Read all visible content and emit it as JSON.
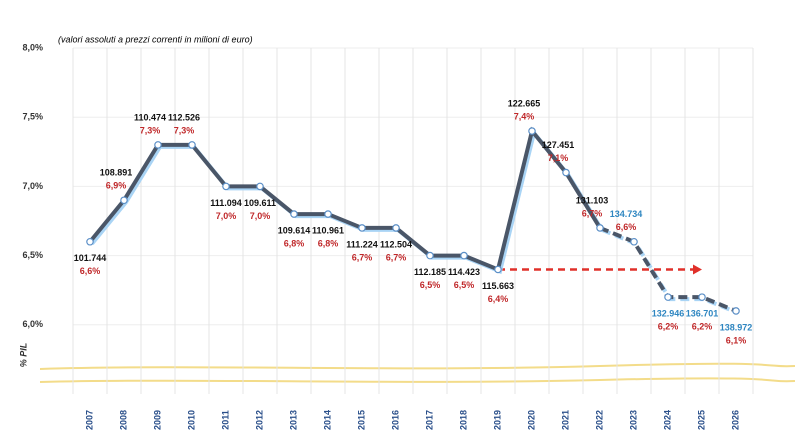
{
  "chart_data": {
    "type": "line",
    "subtitle": "(valori assoluti a prezzi correnti in milioni di euro)",
    "y_label": "% PIL",
    "categories": [
      "2007",
      "2008",
      "2009",
      "2010",
      "2011",
      "2012",
      "2013",
      "2014",
      "2015",
      "2016",
      "2017",
      "2018",
      "2019",
      "2020",
      "2021",
      "2022",
      "2023",
      "2024",
      "2025",
      "2026"
    ],
    "series": [
      {
        "color": "#4a5668",
        "values": [
          6.6,
          6.9,
          7.3,
          7.3,
          7.0,
          7.0,
          6.8,
          6.8,
          6.7,
          6.7,
          6.5,
          6.5,
          6.4,
          7.4,
          7.1,
          6.7,
          6.6,
          6.2,
          6.2,
          6.1
        ],
        "value_labels": [
          "6,6%",
          "6,9%",
          "7,3%",
          "7,3%",
          "7,0%",
          "7,0%",
          "6,8%",
          "6,8%",
          "6,7%",
          "6,7%",
          "6,5%",
          "6,5%",
          "6,4%",
          "7,4%",
          "7,1%",
          "6,7%",
          "6,6%",
          "6,2%",
          "6,2%",
          "6,1%"
        ],
        "value_label_color": "#c0282a",
        "amounts": [
          101744,
          108891,
          110474,
          112526,
          111094,
          109611,
          109614,
          110961,
          111224,
          112504,
          112185,
          114423,
          115663,
          122665,
          127451,
          131103,
          134734,
          132946,
          136701,
          138972
        ],
        "amount_labels": [
          "101.744",
          "108.891",
          "110.474",
          "112.526",
          "111.094",
          "109.611",
          "109.614",
          "110.961",
          "111.224",
          "112.504",
          "112.185",
          "114.423",
          "115.663",
          "122.665",
          "127.451",
          "131.103",
          "134.734",
          "132.946",
          "136.701",
          "138.972"
        ],
        "amount_label_colors": [
          "#111111",
          "#111111",
          "#111111",
          "#111111",
          "#111111",
          "#111111",
          "#111111",
          "#111111",
          "#111111",
          "#111111",
          "#111111",
          "#111111",
          "#111111",
          "#111111",
          "#111111",
          "#111111",
          "#2e86c1",
          "#2e86c1",
          "#2e86c1",
          "#2e86c1"
        ],
        "dashed_from": "2022"
      }
    ],
    "reference_arrow": {
      "value": 6.4,
      "from": "2019",
      "to": "2025",
      "color": "#e0302a"
    },
    "ylim": [
      5.5,
      8.0
    ],
    "yticks": [
      {
        "value": 6.0,
        "label": "6,0%"
      },
      {
        "value": 6.5,
        "label": "6,5%"
      },
      {
        "value": 7.0,
        "label": "7,0%"
      },
      {
        "value": 7.5,
        "label": "7,5%"
      },
      {
        "value": 8.0,
        "label": "8,0%"
      }
    ],
    "grid": true
  }
}
